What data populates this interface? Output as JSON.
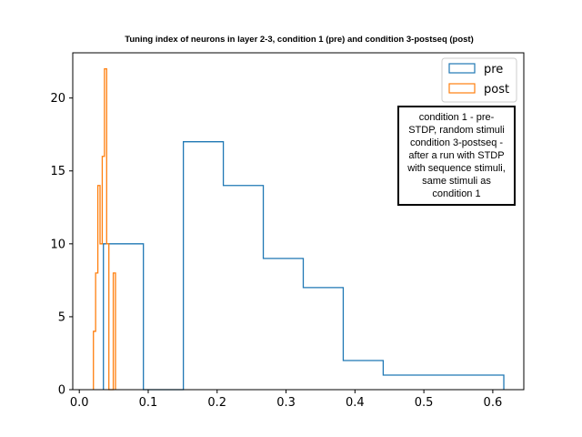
{
  "chart_data": {
    "type": "histogram-step",
    "title": "Tuning index of neurons in layer 2-3, condition 1 (pre) and condition 3-postseq (post)",
    "xlim": [
      -0.0095,
      0.645
    ],
    "ylim": [
      0,
      23.1
    ],
    "xticks": [
      0.0,
      0.1,
      0.2,
      0.3,
      0.4,
      0.5,
      0.6
    ],
    "xtick_labels": [
      "0.0",
      "0.1",
      "0.2",
      "0.3",
      "0.4",
      "0.5",
      "0.6"
    ],
    "yticks": [
      0,
      5,
      10,
      15,
      20
    ],
    "ytick_labels": [
      "0",
      "5",
      "10",
      "15",
      "20"
    ],
    "series": [
      {
        "name": "pre",
        "color": "#1f77b4",
        "bin_edges": [
          0.035,
          0.093,
          0.151,
          0.209,
          0.267,
          0.325,
          0.383,
          0.441,
          0.5,
          0.558,
          0.616
        ],
        "counts": [
          10,
          0,
          17,
          14,
          9,
          7,
          2,
          1,
          1,
          1
        ]
      },
      {
        "name": "post",
        "color": "#ff7f0e",
        "bin_edges": [
          0.0205,
          0.0237,
          0.0269,
          0.0301,
          0.0333,
          0.0365,
          0.0397,
          0.0429,
          0.0461,
          0.0493,
          0.0525
        ],
        "counts": [
          4,
          8,
          14,
          10,
          16,
          22,
          10,
          0,
          0,
          8
        ]
      }
    ],
    "legend": {
      "placement": "top-right",
      "entries": [
        "pre",
        "post"
      ]
    },
    "annotation": {
      "lines": [
        "condition 1 - pre-",
        "STDP, random stimuli",
        "condition 3-postseq -",
        "after a run with STDP",
        "with sequence stimuli,",
        "same stimuli as",
        "condition 1"
      ]
    },
    "grid": false
  }
}
